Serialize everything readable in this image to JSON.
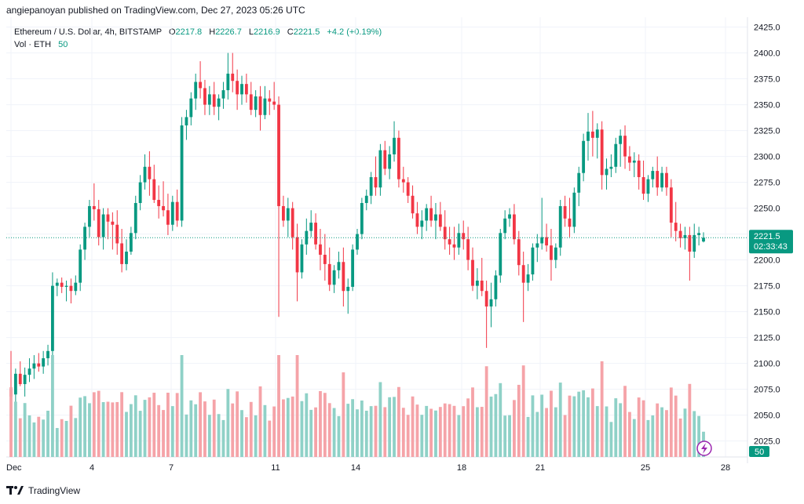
{
  "publisher": "angiepanoyan published on TradingView.com, Dec 27, 2023 05:26 UTC",
  "legend": {
    "symbol": "Ethereum / U.S. Dollar, 4h, BITSTAMP",
    "o_label": "O",
    "o": "2217.8",
    "h_label": "H",
    "h": "2226.7",
    "l_label": "L",
    "l": "2216.9",
    "c_label": "C",
    "c": "2221.5",
    "change": "+4.2 (+0.19%)",
    "vol_label": "Vol · ETH",
    "vol_value": "50"
  },
  "price_tag": {
    "price": "2221.5",
    "countdown": "02:33:43"
  },
  "vol_tag": "50",
  "footer": {
    "brand": "TradingView"
  },
  "colors": {
    "up": "#089981",
    "down": "#f23645",
    "vol_up": "#8fd1c7",
    "vol_down": "#f5a3a8",
    "grid": "#f0f3fa"
  },
  "chart_data": {
    "type": "candlestick",
    "symbol": "ETH/USD",
    "interval": "4h",
    "y_ticks": [
      "2425.0",
      "2400.0",
      "2375.0",
      "2350.0",
      "2325.0",
      "2300.0",
      "2275.0",
      "2250.0",
      "2225.0",
      "2200.0",
      "2175.0",
      "2150.0",
      "2125.0",
      "2100.0",
      "2075.0",
      "2050.0",
      "2025.0"
    ],
    "x_ticks": [
      "Dec",
      "4",
      "7",
      "11",
      "14",
      "18",
      "21",
      "25",
      "28"
    ],
    "ylim": [
      2010,
      2440
    ],
    "candles": [
      [
        2075,
        2112,
        2055,
        2068
      ],
      [
        2070,
        2095,
        2062,
        2090
      ],
      [
        2090,
        2102,
        2078,
        2080
      ],
      [
        2080,
        2096,
        2068,
        2089
      ],
      [
        2089,
        2105,
        2082,
        2095
      ],
      [
        2095,
        2108,
        2085,
        2100
      ],
      [
        2100,
        2110,
        2092,
        2097
      ],
      [
        2097,
        2112,
        2090,
        2105
      ],
      [
        2105,
        2118,
        2098,
        2112
      ],
      [
        2112,
        2188,
        2108,
        2175
      ],
      [
        2175,
        2182,
        2165,
        2178
      ],
      [
        2178,
        2183,
        2168,
        2174
      ],
      [
        2174,
        2180,
        2160,
        2175
      ],
      [
        2175,
        2182,
        2158,
        2170
      ],
      [
        2170,
        2185,
        2166,
        2178
      ],
      [
        2178,
        2215,
        2170,
        2210
      ],
      [
        2210,
        2236,
        2200,
        2232
      ],
      [
        2232,
        2258,
        2222,
        2252
      ],
      [
        2252,
        2274,
        2238,
        2249
      ],
      [
        2249,
        2258,
        2214,
        2222
      ],
      [
        2222,
        2250,
        2210,
        2244
      ],
      [
        2244,
        2250,
        2220,
        2237
      ],
      [
        2237,
        2246,
        2210,
        2234
      ],
      [
        2234,
        2248,
        2205,
        2216
      ],
      [
        2216,
        2230,
        2188,
        2196
      ],
      [
        2196,
        2220,
        2190,
        2208
      ],
      [
        2208,
        2232,
        2205,
        2226
      ],
      [
        2226,
        2262,
        2220,
        2255
      ],
      [
        2255,
        2282,
        2248,
        2275
      ],
      [
        2275,
        2302,
        2268,
        2290
      ],
      [
        2290,
        2305,
        2262,
        2278
      ],
      [
        2278,
        2292,
        2255,
        2258
      ],
      [
        2258,
        2272,
        2240,
        2252
      ],
      [
        2252,
        2276,
        2242,
        2248
      ],
      [
        2248,
        2264,
        2224,
        2234
      ],
      [
        2234,
        2262,
        2228,
        2256
      ],
      [
        2256,
        2268,
        2232,
        2238
      ],
      [
        2238,
        2338,
        2232,
        2330
      ],
      [
        2330,
        2345,
        2316,
        2338
      ],
      [
        2338,
        2362,
        2330,
        2356
      ],
      [
        2356,
        2380,
        2345,
        2372
      ],
      [
        2372,
        2392,
        2356,
        2366
      ],
      [
        2366,
        2374,
        2340,
        2350
      ],
      [
        2350,
        2368,
        2340,
        2360
      ],
      [
        2360,
        2372,
        2340,
        2348
      ],
      [
        2348,
        2360,
        2335,
        2356
      ],
      [
        2356,
        2372,
        2346,
        2364
      ],
      [
        2364,
        2400,
        2355,
        2380
      ],
      [
        2380,
        2400,
        2362,
        2373
      ],
      [
        2373,
        2384,
        2345,
        2360
      ],
      [
        2360,
        2378,
        2350,
        2370
      ],
      [
        2370,
        2380,
        2352,
        2360
      ],
      [
        2360,
        2372,
        2340,
        2345
      ],
      [
        2345,
        2364,
        2338,
        2358
      ],
      [
        2358,
        2368,
        2325,
        2340
      ],
      [
        2340,
        2368,
        2336,
        2356
      ],
      [
        2356,
        2364,
        2340,
        2353
      ],
      [
        2353,
        2372,
        2345,
        2350
      ],
      [
        2350,
        2358,
        2145,
        2252
      ],
      [
        2252,
        2262,
        2232,
        2238
      ],
      [
        2238,
        2260,
        2222,
        2250
      ],
      [
        2250,
        2256,
        2210,
        2222
      ],
      [
        2222,
        2235,
        2160,
        2188
      ],
      [
        2188,
        2220,
        2182,
        2215
      ],
      [
        2215,
        2240,
        2205,
        2228
      ],
      [
        2228,
        2248,
        2222,
        2236
      ],
      [
        2236,
        2245,
        2210,
        2215
      ],
      [
        2215,
        2230,
        2190,
        2205
      ],
      [
        2205,
        2225,
        2180,
        2196
      ],
      [
        2196,
        2212,
        2170,
        2176
      ],
      [
        2176,
        2195,
        2168,
        2190
      ],
      [
        2190,
        2208,
        2182,
        2198
      ],
      [
        2198,
        2212,
        2155,
        2170
      ],
      [
        2170,
        2182,
        2148,
        2174
      ],
      [
        2174,
        2215,
        2170,
        2210
      ],
      [
        2210,
        2230,
        2205,
        2225
      ],
      [
        2225,
        2260,
        2220,
        2255
      ],
      [
        2255,
        2268,
        2248,
        2262
      ],
      [
        2262,
        2285,
        2254,
        2280
      ],
      [
        2280,
        2300,
        2262,
        2270
      ],
      [
        2270,
        2312,
        2262,
        2306
      ],
      [
        2306,
        2315,
        2282,
        2288
      ],
      [
        2288,
        2310,
        2278,
        2302
      ],
      [
        2302,
        2334,
        2295,
        2318
      ],
      [
        2318,
        2325,
        2270,
        2278
      ],
      [
        2278,
        2290,
        2265,
        2275
      ],
      [
        2275,
        2280,
        2255,
        2262
      ],
      [
        2262,
        2272,
        2240,
        2245
      ],
      [
        2245,
        2256,
        2225,
        2232
      ],
      [
        2232,
        2248,
        2220,
        2238
      ],
      [
        2238,
        2254,
        2228,
        2250
      ],
      [
        2250,
        2262,
        2232,
        2238
      ],
      [
        2238,
        2255,
        2220,
        2244
      ],
      [
        2244,
        2256,
        2228,
        2232
      ],
      [
        2232,
        2248,
        2210,
        2220
      ],
      [
        2220,
        2232,
        2205,
        2215
      ],
      [
        2215,
        2232,
        2200,
        2212
      ],
      [
        2212,
        2235,
        2205,
        2226
      ],
      [
        2226,
        2238,
        2210,
        2220
      ],
      [
        2220,
        2232,
        2190,
        2200
      ],
      [
        2200,
        2212,
        2170,
        2175
      ],
      [
        2175,
        2192,
        2162,
        2180
      ],
      [
        2180,
        2202,
        2165,
        2170
      ],
      [
        2170,
        2180,
        2115,
        2155
      ],
      [
        2155,
        2178,
        2135,
        2162
      ],
      [
        2162,
        2190,
        2155,
        2185
      ],
      [
        2185,
        2230,
        2178,
        2226
      ],
      [
        2226,
        2248,
        2220,
        2240
      ],
      [
        2240,
        2250,
        2232,
        2244
      ],
      [
        2244,
        2254,
        2215,
        2220
      ],
      [
        2220,
        2228,
        2185,
        2195
      ],
      [
        2195,
        2208,
        2140,
        2178
      ],
      [
        2178,
        2196,
        2170,
        2186
      ],
      [
        2186,
        2216,
        2180,
        2212
      ],
      [
        2212,
        2225,
        2198,
        2216
      ],
      [
        2216,
        2260,
        2210,
        2222
      ],
      [
        2222,
        2235,
        2208,
        2214
      ],
      [
        2214,
        2230,
        2180,
        2200
      ],
      [
        2200,
        2216,
        2192,
        2212
      ],
      [
        2212,
        2258,
        2204,
        2252
      ],
      [
        2252,
        2262,
        2232,
        2240
      ],
      [
        2240,
        2260,
        2222,
        2232
      ],
      [
        2232,
        2270,
        2226,
        2265
      ],
      [
        2265,
        2290,
        2252,
        2284
      ],
      [
        2284,
        2322,
        2276,
        2315
      ],
      [
        2315,
        2342,
        2296,
        2324
      ],
      [
        2324,
        2344,
        2300,
        2318
      ],
      [
        2318,
        2332,
        2298,
        2326
      ],
      [
        2326,
        2334,
        2268,
        2282
      ],
      [
        2282,
        2298,
        2268,
        2288
      ],
      [
        2288,
        2302,
        2280,
        2290
      ],
      [
        2290,
        2318,
        2284,
        2312
      ],
      [
        2312,
        2326,
        2290,
        2320
      ],
      [
        2320,
        2330,
        2288,
        2300
      ],
      [
        2300,
        2310,
        2286,
        2294
      ],
      [
        2294,
        2304,
        2280,
        2296
      ],
      [
        2296,
        2302,
        2268,
        2280
      ],
      [
        2280,
        2296,
        2258,
        2264
      ],
      [
        2264,
        2282,
        2256,
        2278
      ],
      [
        2278,
        2290,
        2270,
        2286
      ],
      [
        2286,
        2300,
        2262,
        2270
      ],
      [
        2270,
        2290,
        2266,
        2284
      ],
      [
        2284,
        2290,
        2262,
        2270
      ],
      [
        2270,
        2278,
        2222,
        2236
      ],
      [
        2236,
        2256,
        2218,
        2228
      ],
      [
        2228,
        2235,
        2212,
        2221
      ],
      [
        2221,
        2232,
        2210,
        2224
      ],
      [
        2224,
        2232,
        2180,
        2208
      ],
      [
        2208,
        2235,
        2202,
        2224
      ],
      [
        2224,
        2232,
        2214,
        2226
      ],
      [
        2217.8,
        2226.7,
        2216.9,
        2221.5
      ]
    ],
    "volume": {
      "label": "Vol · ETH",
      "last": 50
    }
  }
}
